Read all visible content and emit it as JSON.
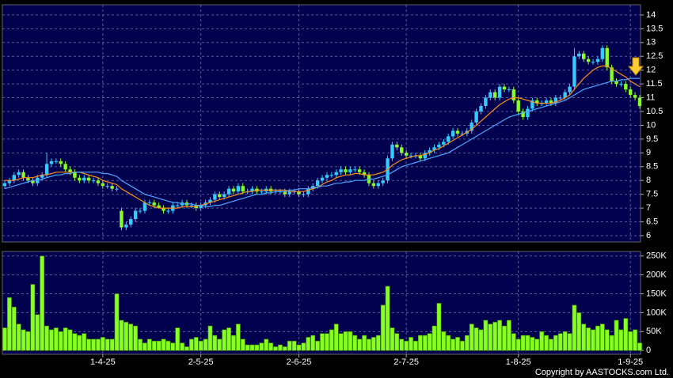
{
  "chart_data": [
    {
      "type": "candlestick",
      "up_color": "#33ccff",
      "down_color": "#88ff22",
      "open": [
        7.8,
        7.9,
        8.0,
        8.2,
        8.3,
        8.1,
        8.0,
        7.9,
        8.1,
        8.2,
        8.6,
        8.7,
        8.7,
        8.6,
        8.4,
        8.3,
        8.1,
        8.0,
        8.1,
        8.0,
        8.0,
        7.9,
        7.8,
        7.8,
        7.7,
        6.9,
        6.3,
        6.4,
        6.6,
        6.9,
        6.9,
        7.2,
        7.2,
        7.1,
        7.0,
        6.9,
        6.9,
        7.1,
        7.1,
        7.2,
        7.1,
        7.1,
        7.0,
        7.1,
        7.2,
        7.3,
        7.5,
        7.4,
        7.5,
        7.7,
        7.6,
        7.8,
        7.6,
        7.6,
        7.7,
        7.6,
        7.6,
        7.7,
        7.6,
        7.6,
        7.6,
        7.5,
        7.6,
        7.6,
        7.5,
        7.5,
        7.7,
        7.8,
        8.0,
        8.1,
        8.2,
        8.2,
        8.3,
        8.4,
        8.3,
        8.4,
        8.4,
        8.3,
        8.2,
        7.9,
        7.8,
        7.9,
        8.0,
        8.8,
        9.3,
        9.2,
        9.0,
        8.9,
        8.9,
        8.9,
        8.8,
        9.0,
        9.1,
        9.2,
        9.3,
        9.4,
        9.6,
        9.8,
        9.7,
        9.7,
        9.8,
        10.1,
        10.5,
        10.7,
        11.0,
        11.2,
        11.0,
        11.4,
        11.3,
        11.3,
        10.9,
        10.5,
        10.3,
        10.6,
        10.9,
        10.8,
        10.8,
        10.9,
        10.8,
        11.0,
        11.0,
        11.2,
        11.4,
        12.5,
        12.6,
        12.4,
        12.3,
        12.3,
        12.4,
        12.8,
        12.1,
        11.6,
        11.5,
        11.5,
        11.3,
        11.1,
        11.0
      ],
      "high": [
        8.0,
        8.1,
        8.3,
        8.4,
        8.4,
        8.2,
        8.1,
        8.2,
        8.3,
        9.0,
        8.8,
        8.8,
        8.8,
        8.7,
        8.5,
        8.4,
        8.2,
        8.2,
        8.2,
        8.1,
        8.1,
        8.0,
        7.9,
        7.9,
        7.8,
        7.0,
        6.5,
        6.7,
        7.0,
        7.0,
        7.3,
        7.3,
        7.3,
        7.2,
        7.1,
        7.0,
        7.2,
        7.2,
        7.3,
        7.3,
        7.2,
        7.2,
        7.2,
        7.3,
        7.4,
        7.6,
        7.6,
        7.6,
        7.8,
        7.8,
        7.9,
        7.9,
        7.7,
        7.8,
        7.8,
        7.7,
        7.8,
        7.8,
        7.7,
        7.7,
        7.7,
        7.7,
        7.7,
        7.7,
        7.6,
        7.8,
        7.9,
        8.1,
        8.2,
        8.3,
        8.3,
        8.4,
        8.5,
        8.5,
        8.5,
        8.5,
        8.5,
        8.4,
        8.3,
        8.0,
        8.0,
        8.1,
        8.9,
        9.4,
        9.4,
        9.3,
        9.1,
        9.0,
        9.0,
        9.0,
        9.1,
        9.2,
        9.3,
        9.4,
        9.5,
        9.7,
        9.9,
        9.9,
        9.8,
        9.9,
        10.2,
        10.6,
        10.8,
        11.1,
        11.3,
        11.3,
        11.5,
        11.5,
        11.4,
        11.4,
        11.0,
        10.6,
        10.7,
        11.0,
        11.0,
        10.9,
        11.0,
        11.0,
        11.1,
        11.1,
        11.3,
        11.5,
        12.8,
        12.7,
        12.7,
        12.5,
        12.4,
        12.5,
        12.9,
        12.9,
        12.2,
        11.7,
        11.6,
        11.6,
        11.4,
        11.2,
        11.1
      ],
      "low": [
        7.7,
        7.8,
        7.9,
        8.1,
        8.0,
        7.9,
        7.8,
        7.8,
        8.0,
        8.1,
        8.5,
        8.6,
        8.5,
        8.3,
        8.2,
        8.0,
        7.9,
        7.9,
        7.9,
        7.9,
        7.8,
        7.7,
        7.7,
        7.6,
        7.6,
        6.2,
        6.2,
        6.3,
        6.5,
        6.8,
        6.8,
        7.1,
        7.0,
        7.0,
        6.8,
        6.8,
        6.8,
        7.0,
        7.0,
        7.0,
        7.0,
        6.9,
        6.9,
        7.0,
        7.1,
        7.2,
        7.3,
        7.3,
        7.4,
        7.5,
        7.5,
        7.5,
        7.5,
        7.5,
        7.5,
        7.5,
        7.5,
        7.5,
        7.5,
        7.5,
        7.4,
        7.4,
        7.5,
        7.4,
        7.4,
        7.4,
        7.6,
        7.7,
        7.9,
        8.0,
        8.1,
        8.1,
        8.2,
        8.2,
        8.2,
        8.3,
        8.2,
        8.1,
        7.8,
        7.7,
        7.7,
        7.8,
        7.9,
        8.7,
        9.1,
        8.9,
        8.8,
        8.8,
        8.8,
        8.7,
        8.7,
        8.9,
        9.0,
        9.1,
        9.2,
        9.3,
        9.5,
        9.6,
        9.6,
        9.6,
        9.7,
        10.0,
        10.4,
        10.6,
        10.9,
        10.9,
        10.9,
        11.2,
        11.2,
        10.8,
        10.4,
        10.2,
        10.2,
        10.5,
        10.7,
        10.7,
        10.7,
        10.7,
        10.7,
        10.9,
        10.9,
        11.1,
        11.3,
        12.4,
        12.3,
        12.2,
        12.2,
        12.2,
        12.3,
        12.0,
        11.5,
        11.4,
        11.4,
        11.2,
        11.0,
        10.9,
        10.6
      ],
      "close": [
        7.9,
        8.0,
        8.2,
        8.3,
        8.1,
        8.0,
        7.9,
        8.1,
        8.2,
        8.6,
        8.7,
        8.7,
        8.6,
        8.4,
        8.3,
        8.1,
        8.0,
        8.1,
        8.0,
        8.0,
        7.9,
        7.8,
        7.8,
        7.7,
        7.7,
        6.3,
        6.4,
        6.6,
        6.9,
        6.9,
        7.2,
        7.2,
        7.1,
        7.0,
        6.9,
        6.9,
        7.1,
        7.1,
        7.2,
        7.1,
        7.1,
        7.0,
        7.1,
        7.2,
        7.3,
        7.5,
        7.4,
        7.5,
        7.7,
        7.6,
        7.8,
        7.6,
        7.6,
        7.7,
        7.6,
        7.6,
        7.7,
        7.6,
        7.6,
        7.6,
        7.5,
        7.6,
        7.6,
        7.5,
        7.5,
        7.7,
        7.8,
        8.0,
        8.1,
        8.2,
        8.2,
        8.3,
        8.4,
        8.3,
        8.4,
        8.4,
        8.3,
        8.2,
        7.9,
        7.8,
        7.9,
        8.0,
        8.8,
        9.3,
        9.2,
        9.0,
        8.9,
        8.9,
        8.9,
        8.8,
        9.0,
        9.1,
        9.2,
        9.3,
        9.4,
        9.6,
        9.8,
        9.7,
        9.7,
        9.8,
        10.1,
        10.5,
        10.7,
        11.0,
        11.2,
        11.0,
        11.4,
        11.3,
        11.3,
        10.9,
        10.5,
        10.3,
        10.6,
        10.9,
        10.8,
        10.8,
        10.9,
        10.8,
        11.0,
        11.0,
        11.2,
        11.4,
        12.5,
        12.6,
        12.4,
        12.3,
        12.3,
        12.4,
        12.8,
        12.1,
        11.6,
        11.5,
        11.5,
        11.3,
        11.1,
        11.0,
        10.7
      ],
      "series": [
        {
          "color": "#ff8c1a",
          "values": [
            8.0,
            8.0,
            8.0,
            8.05,
            8.1,
            8.1,
            8.1,
            8.15,
            8.2,
            8.2,
            8.25,
            8.3,
            8.3,
            8.3,
            8.3,
            8.3,
            8.3,
            8.25,
            8.2,
            8.15,
            8.1,
            8.0,
            7.95,
            7.9,
            7.85,
            7.7,
            7.6,
            7.5,
            7.4,
            7.3,
            7.2,
            7.1,
            7.05,
            7.0,
            7.0,
            7.0,
            7.0,
            7.0,
            7.05,
            7.05,
            7.05,
            7.05,
            7.1,
            7.15,
            7.2,
            7.25,
            7.3,
            7.35,
            7.4,
            7.45,
            7.5,
            7.55,
            7.6,
            7.6,
            7.65,
            7.65,
            7.65,
            7.65,
            7.65,
            7.65,
            7.65,
            7.6,
            7.6,
            7.6,
            7.6,
            7.65,
            7.7,
            7.75,
            7.85,
            7.95,
            8.0,
            8.1,
            8.15,
            8.2,
            8.2,
            8.25,
            8.25,
            8.2,
            8.2,
            8.2,
            8.25,
            8.3,
            8.4,
            8.55,
            8.65,
            8.75,
            8.8,
            8.85,
            8.9,
            8.9,
            8.95,
            9.0,
            9.1,
            9.15,
            9.25,
            9.35,
            9.45,
            9.55,
            9.65,
            9.75,
            9.85,
            10.0,
            10.15,
            10.3,
            10.45,
            10.6,
            10.75,
            10.85,
            10.95,
            11.0,
            11.0,
            10.95,
            10.9,
            10.85,
            10.8,
            10.8,
            10.8,
            10.8,
            10.85,
            10.9,
            11.0,
            11.1,
            11.3,
            11.5,
            11.7,
            11.85,
            12.0,
            12.1,
            12.15,
            12.15,
            12.05,
            11.95,
            11.85,
            11.75,
            11.6,
            11.5,
            11.4
          ]
        },
        {
          "color": "#4da6ff",
          "values": [
            7.7,
            7.75,
            7.8,
            7.85,
            7.9,
            7.95,
            8.0,
            8.0,
            8.05,
            8.1,
            8.15,
            8.2,
            8.2,
            8.25,
            8.25,
            8.3,
            8.3,
            8.3,
            8.3,
            8.3,
            8.3,
            8.25,
            8.25,
            8.2,
            8.15,
            8.0,
            7.9,
            7.8,
            7.7,
            7.6,
            7.5,
            7.45,
            7.4,
            7.35,
            7.3,
            7.25,
            7.2,
            7.2,
            7.15,
            7.15,
            7.15,
            7.1,
            7.1,
            7.05,
            7.05,
            7.1,
            7.1,
            7.15,
            7.2,
            7.25,
            7.3,
            7.35,
            7.4,
            7.45,
            7.5,
            7.5,
            7.55,
            7.55,
            7.6,
            7.6,
            7.6,
            7.65,
            7.65,
            7.7,
            7.7,
            7.7,
            7.75,
            7.75,
            7.8,
            7.8,
            7.85,
            7.9,
            7.9,
            7.95,
            7.95,
            8.0,
            8.0,
            8.0,
            8.05,
            8.05,
            8.1,
            8.15,
            8.2,
            8.3,
            8.4,
            8.5,
            8.55,
            8.6,
            8.65,
            8.7,
            8.75,
            8.8,
            8.85,
            8.9,
            8.95,
            9.0,
            9.1,
            9.2,
            9.3,
            9.4,
            9.5,
            9.6,
            9.7,
            9.8,
            9.9,
            10.0,
            10.1,
            10.2,
            10.3,
            10.35,
            10.4,
            10.45,
            10.5,
            10.55,
            10.6,
            10.65,
            10.7,
            10.75,
            10.8,
            10.85,
            10.9,
            11.0,
            11.1,
            11.2,
            11.3,
            11.35,
            11.4,
            11.45,
            11.5,
            11.55,
            11.6,
            11.6,
            11.65,
            11.65,
            11.7,
            11.7,
            11.7
          ]
        }
      ],
      "ylim": [
        5.77,
        14.37
      ],
      "yticks": [
        6,
        6.5,
        7,
        7.5,
        8,
        8.5,
        9,
        9.5,
        10,
        10.5,
        11,
        11.5,
        12,
        12.5,
        13,
        13.5,
        14
      ],
      "grid": true
    },
    {
      "type": "bar",
      "color": "#88ff22",
      "categories": [
        null,
        null,
        null,
        null,
        null,
        null,
        null,
        null,
        null,
        null,
        null,
        null,
        null,
        null,
        null,
        null,
        null,
        null,
        null,
        null,
        null,
        "1-4-25",
        null,
        null,
        null,
        null,
        null,
        null,
        null,
        null,
        null,
        null,
        null,
        null,
        null,
        null,
        null,
        null,
        null,
        null,
        null,
        null,
        "2-5-25",
        null,
        null,
        null,
        null,
        null,
        null,
        null,
        null,
        null,
        null,
        null,
        null,
        null,
        null,
        null,
        null,
        null,
        null,
        null,
        null,
        "2-6-25",
        null,
        null,
        null,
        null,
        null,
        null,
        null,
        null,
        null,
        null,
        null,
        null,
        null,
        null,
        null,
        null,
        null,
        null,
        null,
        null,
        null,
        null,
        "2-7-25",
        null,
        null,
        null,
        null,
        null,
        null,
        null,
        null,
        null,
        null,
        null,
        null,
        null,
        null,
        null,
        null,
        null,
        null,
        null,
        null,
        null,
        null,
        null,
        "1-8-25",
        null,
        null,
        null,
        null,
        null,
        null,
        null,
        null,
        null,
        null,
        null,
        null,
        null,
        null,
        null,
        null,
        null,
        null,
        null,
        null,
        null,
        null,
        null,
        "1-9-25",
        null,
        null
      ],
      "values": [
        60000,
        140000,
        115000,
        70000,
        55000,
        50000,
        175000,
        95000,
        250000,
        65000,
        55000,
        60000,
        50000,
        60000,
        55000,
        45000,
        40000,
        45000,
        30000,
        30000,
        30000,
        35000,
        30000,
        30000,
        150000,
        80000,
        75000,
        70000,
        65000,
        30000,
        20000,
        30000,
        25000,
        25000,
        30000,
        25000,
        20000,
        60000,
        20000,
        10000,
        30000,
        35000,
        25000,
        30000,
        65000,
        40000,
        30000,
        55000,
        60000,
        40000,
        70000,
        30000,
        15000,
        15000,
        15000,
        20000,
        30000,
        20000,
        10000,
        15000,
        10000,
        25000,
        25000,
        15000,
        20000,
        35000,
        40000,
        25000,
        45000,
        45000,
        55000,
        70000,
        45000,
        50000,
        50000,
        40000,
        30000,
        40000,
        30000,
        35000,
        40000,
        120000,
        170000,
        60000,
        45000,
        30000,
        25000,
        35000,
        25000,
        40000,
        40000,
        45000,
        65000,
        125000,
        50000,
        40000,
        30000,
        35000,
        25000,
        40000,
        70000,
        60000,
        55000,
        80000,
        70000,
        75000,
        80000,
        65000,
        80000,
        45000,
        30000,
        40000,
        40000,
        35000,
        30000,
        50000,
        40000,
        30000,
        40000,
        45000,
        50000,
        45000,
        120000,
        100000,
        70000,
        60000,
        55000,
        65000,
        70000,
        55000,
        40000,
        80000,
        55000,
        85000,
        50000,
        55000,
        20000
      ],
      "ylim": [
        -10000,
        262000
      ],
      "yticks": [
        0,
        {
          "value": 50000,
          "label": "50K"
        },
        {
          "value": 100000,
          "label": "100K"
        },
        {
          "value": 150000,
          "label": "150K"
        },
        {
          "value": 200000,
          "label": "200K"
        },
        {
          "value": 250000,
          "label": "250K"
        }
      ],
      "grid": true
    }
  ],
  "copyright": "Copyright by AASTOCKS.com Ltd."
}
